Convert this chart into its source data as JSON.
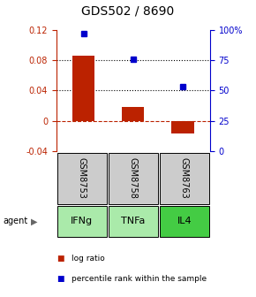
{
  "title": "GDS502 / 8690",
  "samples": [
    "GSM8753",
    "GSM8758",
    "GSM8763"
  ],
  "agents": [
    "IFNg",
    "TNFa",
    "IL4"
  ],
  "log_ratios": [
    0.086,
    0.018,
    -0.016
  ],
  "percentile_ranks": [
    0.97,
    0.76,
    0.53
  ],
  "bar_color": "#bb2200",
  "dot_color": "#0000cc",
  "ylim_left": [
    -0.04,
    0.12
  ],
  "ylim_right": [
    0.0,
    1.0
  ],
  "yticks_left": [
    -0.04,
    0.0,
    0.04,
    0.08,
    0.12
  ],
  "ytick_labels_left": [
    "-0.04",
    "0",
    "0.04",
    "0.08",
    "0.12"
  ],
  "yticks_right": [
    0.0,
    0.25,
    0.5,
    0.75,
    1.0
  ],
  "ytick_labels_right": [
    "0",
    "25",
    "50",
    "75",
    "100%"
  ],
  "dotted_lines": [
    0.04,
    0.08
  ],
  "sample_bg": "#cccccc",
  "agent_bg_colors": [
    "#aaeaaa",
    "#aaeaaa",
    "#44cc44"
  ],
  "bar_width": 0.45,
  "title_fontsize": 10,
  "tick_fontsize": 7,
  "sample_fontsize": 7,
  "agent_fontsize": 8
}
